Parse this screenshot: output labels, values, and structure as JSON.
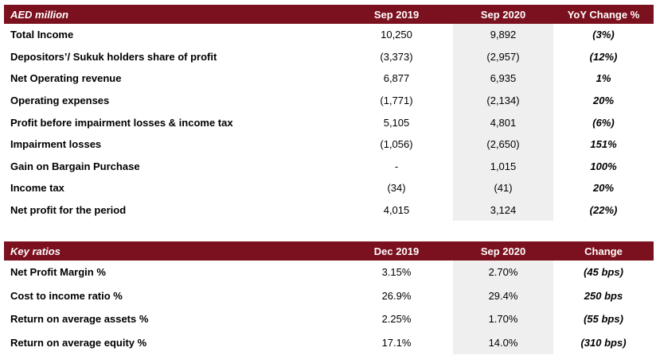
{
  "income_table": {
    "headers": [
      "AED million",
      "Sep 2019",
      "Sep 2020",
      "YoY Change %"
    ],
    "rows": [
      [
        "Total Income",
        "10,250",
        "9,892",
        "(3%)"
      ],
      [
        "Depositors’/ Sukuk holders share of profit",
        "(3,373)",
        "(2,957)",
        "(12%)"
      ],
      [
        "Net Operating revenue",
        "6,877",
        "6,935",
        "1%"
      ],
      [
        "Operating expenses",
        "(1,771)",
        "(2,134)",
        "20%"
      ],
      [
        "Profit before impairment losses & income tax",
        "5,105",
        "4,801",
        "(6%)"
      ],
      [
        "Impairment losses",
        "(1,056)",
        "(2,650)",
        "151%"
      ],
      [
        "Gain on Bargain Purchase",
        "-",
        "1,015",
        "100%"
      ],
      [
        "Income tax",
        "(34)",
        "(41)",
        "20%"
      ],
      [
        "Net profit for the period",
        "4,015",
        "3,124",
        "(22%)"
      ]
    ]
  },
  "ratios_table": {
    "headers": [
      "Key ratios",
      "Dec 2019",
      "Sep 2020",
      "Change"
    ],
    "rows": [
      [
        "Net Profit Margin %",
        "3.15%",
        "2.70%",
        "(45 bps)"
      ],
      [
        "Cost to income ratio %",
        "26.9%",
        "29.4%",
        "250 bps"
      ],
      [
        "Return on average assets %",
        "2.25%",
        "1.70%",
        "(55 bps)"
      ],
      [
        "Return on average equity %",
        "17.1%",
        "14.0%",
        "(310 bps)"
      ]
    ]
  },
  "colors": {
    "header_bg": "#7b111e",
    "header_text": "#ffffff",
    "shade": "#efefef"
  }
}
